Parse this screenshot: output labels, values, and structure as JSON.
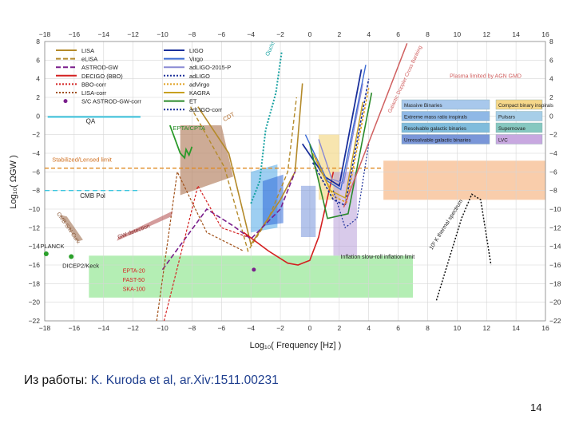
{
  "chart_data": {
    "type": "line",
    "xlabel": "Log₁₀( Frequency [Hz] )",
    "ylabel": "Log₁₀( ΩGW )",
    "xlim": [
      -18,
      16
    ],
    "ylim": [
      -22,
      8
    ],
    "x_ticks": [
      -18,
      -16,
      -14,
      -12,
      -10,
      -8,
      -6,
      -4,
      -2,
      0,
      2,
      4,
      6,
      8,
      10,
      12,
      14,
      16
    ],
    "y_ticks": [
      8,
      6,
      4,
      2,
      0,
      -2,
      -4,
      -6,
      -8,
      -10,
      -12,
      -14,
      -16,
      -18,
      -20,
      -22
    ],
    "grid": true,
    "legend_left": [
      {
        "label": "LISA",
        "color": "#b48a2a",
        "dash": "solid"
      },
      {
        "label": "eLISA",
        "color": "#b48a2a",
        "dash": "dashed"
      },
      {
        "label": "ASTROD-GW",
        "color": "#7a1f8c",
        "dash": "dashed"
      },
      {
        "label": "DECIGO (BBO)",
        "color": "#d42020",
        "dash": "solid"
      },
      {
        "label": "BBO-corr",
        "color": "#d42020",
        "dash": "dotted"
      },
      {
        "label": "LISA-corr",
        "color": "#a05018",
        "dash": "dotted"
      },
      {
        "label": "S/C ASTROD-GW-corr",
        "color": "#7a1f8c",
        "dash": "dot"
      }
    ],
    "legend_right": [
      {
        "label": "LIGO",
        "color": "#1a2f9a",
        "dash": "solid"
      },
      {
        "label": "Virgo",
        "color": "#3a6ad4",
        "dash": "solid"
      },
      {
        "label": "adLIGO-2015-P",
        "color": "#8a8ad4",
        "dash": "solid"
      },
      {
        "label": "adLIGO",
        "color": "#1a2f9a",
        "dash": "dotted"
      },
      {
        "label": "adVirgo",
        "color": "#e0a020",
        "dash": "dotted"
      },
      {
        "label": "KAGRA",
        "color": "#c8a020",
        "dash": "solid"
      },
      {
        "label": "ET",
        "color": "#2a8a2a",
        "dash": "solid"
      },
      {
        "label": "adLIGO-corr",
        "color": "#1a2f9a",
        "dash": "dotted"
      }
    ],
    "source_legend": [
      {
        "label": "Massive Binaries",
        "color": "#a8c8ec"
      },
      {
        "label": "Compact binary inspirals",
        "color": "#f6d88a"
      },
      {
        "label": "Extreme mass ratio inspirals",
        "color": "#8fb8e6"
      },
      {
        "label": "Pulsars",
        "color": "#a7cee8"
      },
      {
        "label": "Resolvable galactic binaries",
        "color": "#80bcdc"
      },
      {
        "label": "Supernovae",
        "color": "#86c8c0"
      },
      {
        "label": "Unresolvable galactic binaries",
        "color": "#7a96d8"
      },
      {
        "label": "LVC",
        "color": "#c8a8e0"
      }
    ],
    "annotations": {
      "qa": "QA",
      "cmb_pol": "CMB Pol",
      "gw_detection": "GW detection",
      "cpta": "EPTA/CPTA",
      "cdt": "CDT",
      "fs_limit": "Stabilized/Lensed limit",
      "cmb_sky": "CMB S/N Curv.",
      "planck": "PLANCK",
      "dicep": "DICEP2/Keck",
      "epta": "EPTA-20",
      "fast": "FAST-50",
      "ska": "SKA-100",
      "agn": "Plasma limited by AGN GMD",
      "galactic": "Galactic Doppler Cross Banking",
      "slowroll": "Inflation slow-roll inflation limit",
      "thermal": "10² K thermal spectrum",
      "ouch": "Ouch!"
    }
  },
  "caption": {
    "prefix": "Из работы:",
    "citation": "K. Kuroda et al, ar.Xiv:1511.00231"
  },
  "page_number": "14"
}
